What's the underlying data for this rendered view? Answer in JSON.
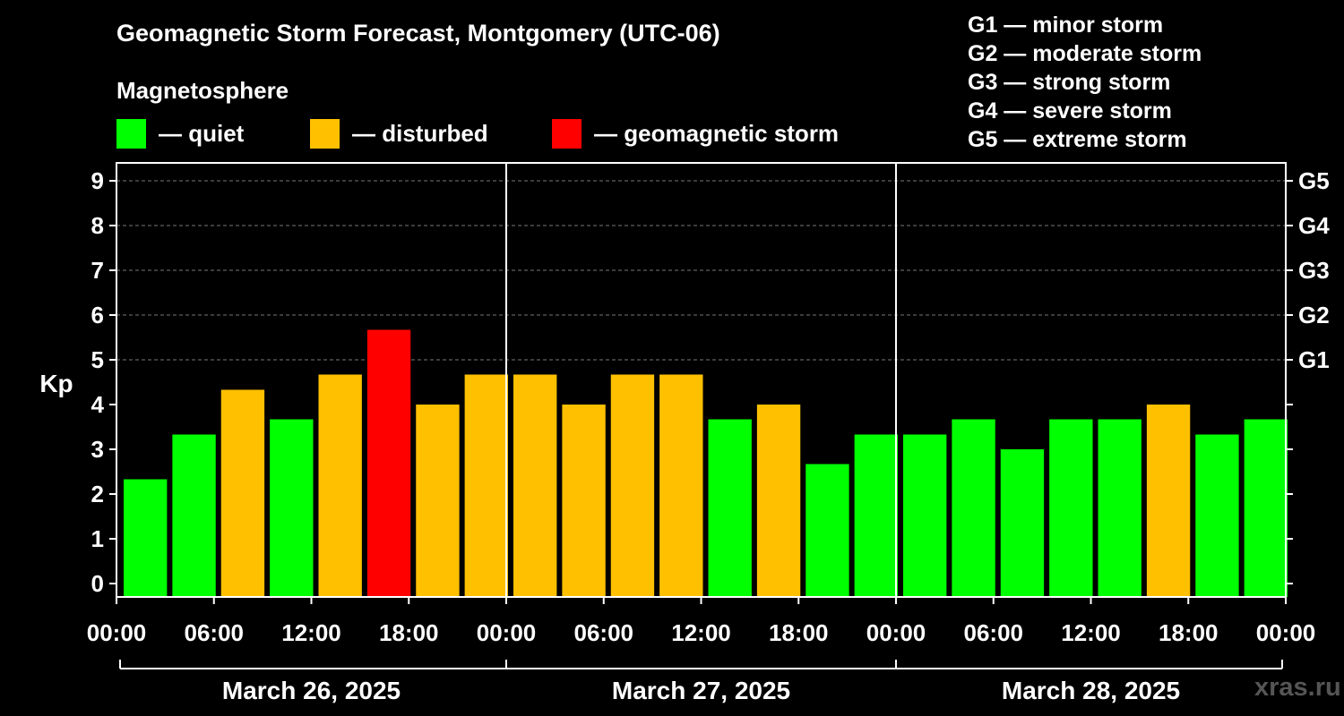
{
  "chart_data": {
    "type": "bar",
    "title": "Geomagnetic Storm Forecast, Montgomery (UTC-06)",
    "subtitle": "Magnetosphere",
    "ylabel": "Kp",
    "ylim": [
      0,
      9
    ],
    "yticks": [
      "0",
      "1",
      "2",
      "3",
      "4",
      "5",
      "6",
      "7",
      "8",
      "9"
    ],
    "right_axis_labels": [
      {
        "kp": 5,
        "label": "G1"
      },
      {
        "kp": 6,
        "label": "G2"
      },
      {
        "kp": 7,
        "label": "G3"
      },
      {
        "kp": 8,
        "label": "G4"
      },
      {
        "kp": 9,
        "label": "G5"
      }
    ],
    "xtick_labels": [
      "00:00",
      "06:00",
      "12:00",
      "18:00",
      "00:00",
      "06:00",
      "12:00",
      "18:00",
      "00:00",
      "06:00",
      "12:00",
      "18:00",
      "00:00"
    ],
    "dates": [
      "March 26, 2025",
      "March 27, 2025",
      "March 28, 2025"
    ],
    "bar_hours": 3,
    "values": [
      2.33,
      3.33,
      4.33,
      3.67,
      4.67,
      5.67,
      4.0,
      4.67,
      4.67,
      4.0,
      4.67,
      4.67,
      3.67,
      4.0,
      2.67,
      3.33,
      3.33,
      3.67,
      3.0,
      3.67,
      3.67,
      4.0,
      3.33,
      3.67
    ],
    "categories": [
      "quiet",
      "quiet",
      "disturbed",
      "quiet",
      "disturbed",
      "storm",
      "disturbed",
      "disturbed",
      "disturbed",
      "disturbed",
      "disturbed",
      "disturbed",
      "quiet",
      "disturbed",
      "quiet",
      "quiet",
      "quiet",
      "quiet",
      "quiet",
      "quiet",
      "quiet",
      "disturbed",
      "quiet",
      "quiet"
    ],
    "grid": true
  },
  "legend": {
    "quiet": {
      "label": "— quiet",
      "color": "#00ff00"
    },
    "disturbed": {
      "label": "— disturbed",
      "color": "#ffc000"
    },
    "storm": {
      "label": "— geomagnetic storm",
      "color": "#ff0000"
    }
  },
  "g_scale": [
    "G1 — minor storm",
    "G2 — moderate storm",
    "G3 — strong storm",
    "G4 — severe storm",
    "G5 — extreme storm"
  ],
  "credit": "xras.ru"
}
